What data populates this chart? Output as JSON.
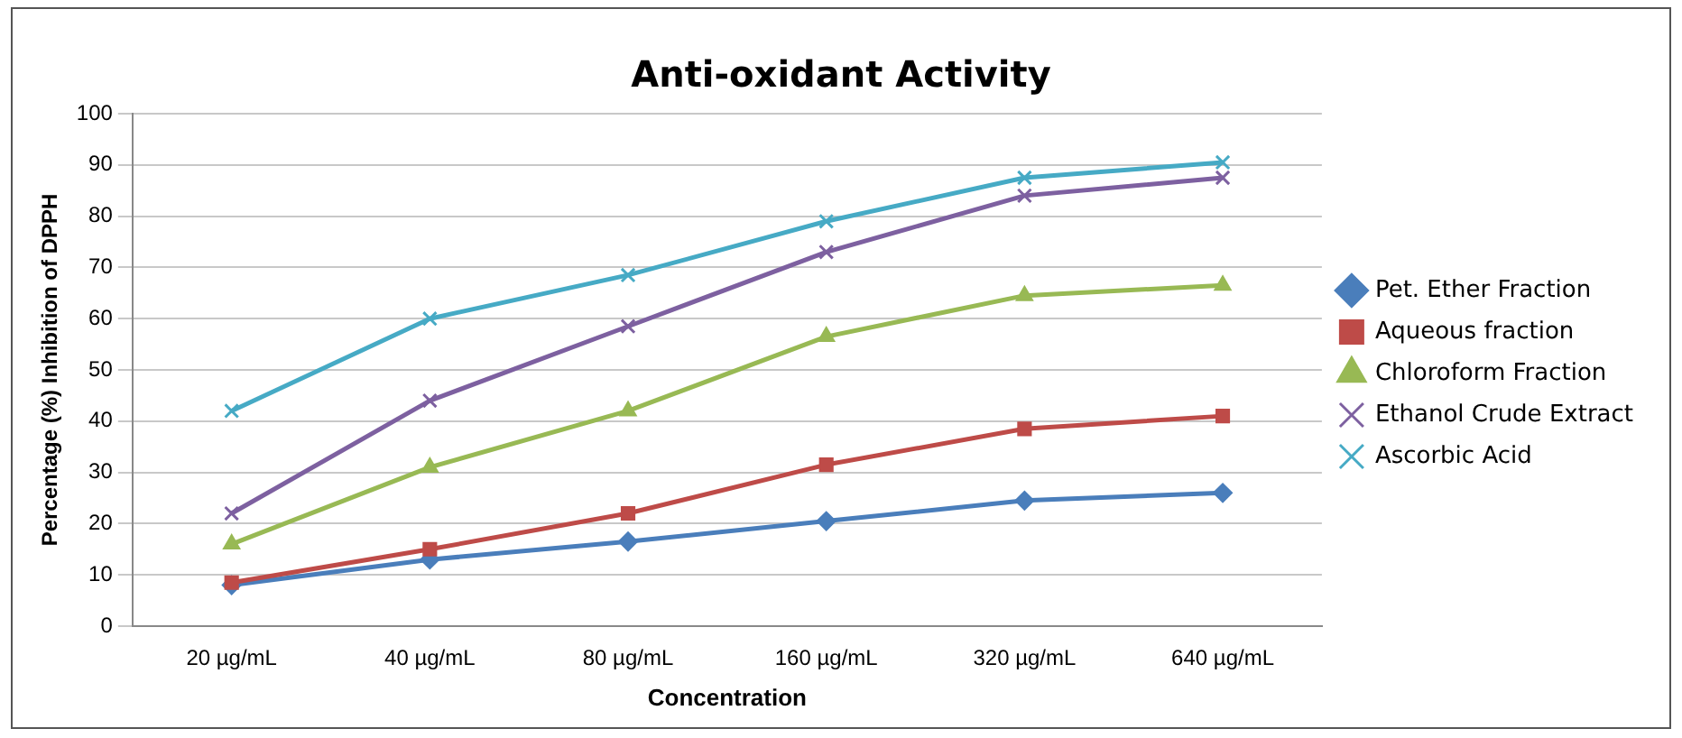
{
  "chart_data": {
    "type": "line",
    "title": "Anti-oxidant Activity",
    "xlabel": "Concentration",
    "ylabel": "Percentage (%) Inhibition of DPPH",
    "categories": [
      "20 µg/mL",
      "40 µg/mL",
      "80 µg/mL",
      "160 µg/mL",
      "320 µg/mL",
      "640 µg/mL"
    ],
    "ylim": [
      0,
      100
    ],
    "yticks": [
      0,
      10,
      20,
      30,
      40,
      50,
      60,
      70,
      80,
      90,
      100
    ],
    "grid": "y",
    "legend": "right",
    "line_style": "solid",
    "series": [
      {
        "name": "Pet. Ether Fraction",
        "color": "#4a7ebb",
        "marker": "diamond",
        "values": [
          8,
          13,
          16.5,
          20.5,
          24.5,
          26
        ]
      },
      {
        "name": "Aqueous fraction",
        "color": "#be4b48",
        "marker": "square",
        "values": [
          8.5,
          15,
          22,
          31.5,
          38.5,
          41
        ]
      },
      {
        "name": "Chloroform Fraction",
        "color": "#98b954",
        "marker": "triangle",
        "values": [
          16,
          31,
          42,
          56.5,
          64.5,
          66.5
        ]
      },
      {
        "name": "Ethanol Crude Extract",
        "color": "#7d60a0",
        "marker": "cross",
        "values": [
          22,
          44,
          58.5,
          73,
          84,
          87.5
        ]
      },
      {
        "name": "Ascorbic Acid",
        "color": "#46aac5",
        "marker": "cross",
        "values": [
          42,
          60,
          68.5,
          79,
          87.5,
          90.5
        ]
      }
    ]
  }
}
